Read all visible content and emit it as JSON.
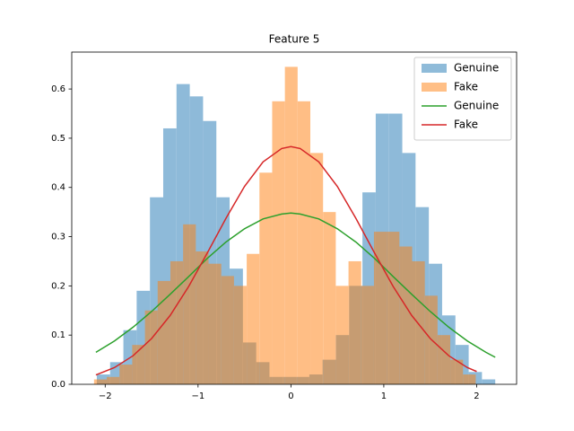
{
  "chart_data": {
    "type": "histogram",
    "title": "Feature 5",
    "xlim": [
      -2.36,
      2.43
    ],
    "ylim": [
      0,
      0.675
    ],
    "xticks": [
      {
        "value": -2,
        "label": "−2"
      },
      {
        "value": -1,
        "label": "−1"
      },
      0,
      1,
      2
    ],
    "yticks": [
      {
        "value": 0,
        "label": "0.0"
      },
      0.1,
      0.2,
      0.3,
      0.4,
      0.5,
      0.6
    ],
    "legend": "upper right",
    "series": [
      {
        "name": "Genuine",
        "type": "hist",
        "color": "#1f77b4",
        "opacity": 0.5,
        "bins": [
          -2.09,
          -1.947,
          -1.804,
          -1.661,
          -1.518,
          -1.375,
          -1.232,
          -1.089,
          -0.946,
          -0.803,
          -0.66,
          -0.517,
          -0.374,
          -0.231,
          -0.088,
          0.055,
          0.198,
          0.341,
          0.484,
          0.627,
          0.77,
          0.913,
          1.056,
          1.199,
          1.342,
          1.485,
          1.628,
          1.771,
          1.914,
          2.057,
          2.2
        ],
        "values": [
          0.02,
          0.045,
          0.11,
          0.19,
          0.38,
          0.52,
          0.61,
          0.585,
          0.535,
          0.38,
          0.235,
          0.085,
          0.045,
          0.015,
          0.015,
          0.015,
          0.02,
          0.05,
          0.1,
          0.2,
          0.39,
          0.55,
          0.55,
          0.47,
          0.36,
          0.245,
          0.14,
          0.08,
          0.025,
          0.01
        ]
      },
      {
        "name": "Fake",
        "type": "hist",
        "color": "#ff7f0e",
        "opacity": 0.5,
        "bins": [
          -2.12,
          -1.983,
          -1.846,
          -1.709,
          -1.572,
          -1.435,
          -1.298,
          -1.161,
          -1.024,
          -0.887,
          -0.75,
          -0.613,
          -0.476,
          -0.339,
          -0.202,
          -0.065,
          0.072,
          0.209,
          0.346,
          0.483,
          0.62,
          0.757,
          0.894,
          1.031,
          1.168,
          1.305,
          1.442,
          1.579,
          1.716,
          1.853,
          1.99
        ],
        "values": [
          0.01,
          0.015,
          0.04,
          0.08,
          0.15,
          0.21,
          0.25,
          0.325,
          0.27,
          0.245,
          0.22,
          0.2,
          0.265,
          0.43,
          0.575,
          0.645,
          0.575,
          0.47,
          0.35,
          0.2,
          0.25,
          0.2,
          0.31,
          0.31,
          0.28,
          0.25,
          0.18,
          0.1,
          0.05,
          0.02
        ]
      },
      {
        "name": "Genuine",
        "type": "line",
        "color": "#2ca02c",
        "x": [
          -2.1,
          -1.9,
          -1.7,
          -1.5,
          -1.3,
          -1.1,
          -0.9,
          -0.7,
          -0.5,
          -0.3,
          -0.1,
          0,
          0.1,
          0.3,
          0.5,
          0.7,
          0.9,
          1.1,
          1.3,
          1.5,
          1.7,
          1.9,
          2.1,
          2.2
        ],
        "values": [
          0.065,
          0.088,
          0.116,
          0.148,
          0.183,
          0.219,
          0.256,
          0.289,
          0.316,
          0.336,
          0.346,
          0.348,
          0.346,
          0.336,
          0.316,
          0.289,
          0.256,
          0.219,
          0.183,
          0.148,
          0.116,
          0.088,
          0.065,
          0.055
        ]
      },
      {
        "name": "Fake",
        "type": "line",
        "color": "#d62728",
        "x": [
          -2.1,
          -1.9,
          -1.7,
          -1.5,
          -1.3,
          -1.1,
          -0.9,
          -0.7,
          -0.5,
          -0.3,
          -0.1,
          0,
          0.1,
          0.3,
          0.5,
          0.7,
          0.9,
          1.1,
          1.3,
          1.5,
          1.7,
          1.9,
          2.0
        ],
        "values": [
          0.019,
          0.034,
          0.058,
          0.093,
          0.14,
          0.199,
          0.267,
          0.337,
          0.402,
          0.452,
          0.479,
          0.483,
          0.479,
          0.452,
          0.402,
          0.337,
          0.267,
          0.199,
          0.14,
          0.093,
          0.058,
          0.034,
          0.026
        ]
      }
    ]
  }
}
